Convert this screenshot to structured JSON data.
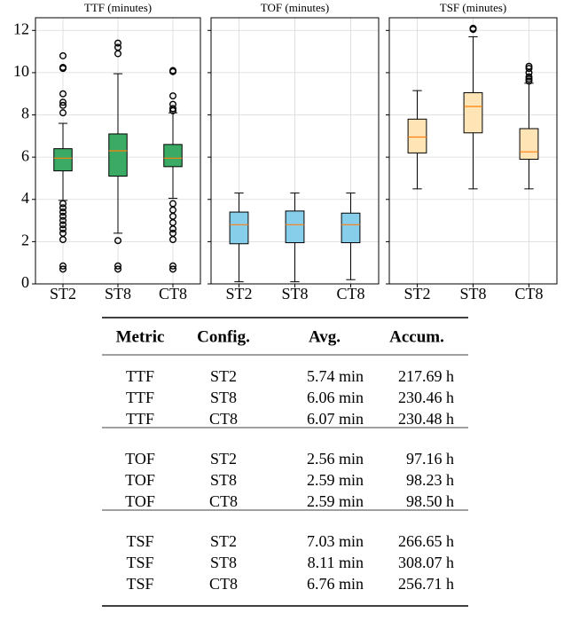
{
  "chart_data": [
    {
      "type": "box",
      "title": "TTF (minutes)",
      "categories": [
        "ST2",
        "ST8",
        "CT8"
      ],
      "color": "#3aaa64",
      "median_color": "#ff7f0e",
      "ylim": [
        0,
        12.6
      ],
      "yticks": [
        0,
        2,
        4,
        6,
        8,
        10,
        12
      ],
      "ytick_labels": true,
      "grid": true,
      "boxes": [
        {
          "whislo": 3.95,
          "q1": 5.35,
          "med": 5.95,
          "q3": 6.4,
          "whishi": 7.6,
          "fliers": [
            10.8,
            10.25,
            10.2,
            9.0,
            8.6,
            8.45,
            8.1,
            3.8,
            3.6,
            3.4,
            3.2,
            3.0,
            2.8,
            2.6,
            2.4,
            2.1,
            0.85,
            0.7
          ]
        },
        {
          "whislo": 2.4,
          "q1": 5.1,
          "med": 6.3,
          "q3": 7.1,
          "whishi": 9.95,
          "fliers": [
            11.4,
            11.2,
            10.9,
            2.05,
            0.85,
            0.7
          ]
        },
        {
          "whislo": 4.05,
          "q1": 5.55,
          "med": 5.95,
          "q3": 6.6,
          "whishi": 8.1,
          "fliers": [
            10.1,
            10.05,
            8.9,
            8.5,
            8.3,
            8.2,
            3.8,
            3.5,
            3.2,
            2.9,
            2.6,
            2.4,
            2.1,
            0.85,
            0.7
          ]
        }
      ]
    },
    {
      "type": "box",
      "title": "TOF (minutes)",
      "categories": [
        "ST2",
        "ST8",
        "CT8"
      ],
      "color": "#87ceeb",
      "median_color": "#ff7f0e",
      "ylim": [
        0,
        12.6
      ],
      "yticks": [
        0,
        2,
        4,
        6,
        8,
        10,
        12
      ],
      "ytick_labels": false,
      "grid": true,
      "boxes": [
        {
          "whislo": 0.1,
          "q1": 1.9,
          "med": 2.8,
          "q3": 3.4,
          "whishi": 4.3,
          "fliers": []
        },
        {
          "whislo": 0.1,
          "q1": 1.95,
          "med": 2.8,
          "q3": 3.45,
          "whishi": 4.3,
          "fliers": []
        },
        {
          "whislo": 0.2,
          "q1": 1.95,
          "med": 2.8,
          "q3": 3.35,
          "whishi": 4.3,
          "fliers": []
        }
      ]
    },
    {
      "type": "box",
      "title": "TSF (minutes)",
      "categories": [
        "ST2",
        "ST8",
        "CT8"
      ],
      "color": "#ffe4b5",
      "median_color": "#ff7f0e",
      "ylim": [
        0,
        12.6
      ],
      "yticks": [
        0,
        2,
        4,
        6,
        8,
        10,
        12
      ],
      "ytick_labels": false,
      "grid": true,
      "boxes": [
        {
          "whislo": 4.5,
          "q1": 6.2,
          "med": 6.95,
          "q3": 7.8,
          "whishi": 9.15,
          "fliers": []
        },
        {
          "whislo": 4.5,
          "q1": 7.15,
          "med": 8.4,
          "q3": 9.05,
          "whishi": 11.7,
          "fliers": [
            12.05,
            12.1
          ]
        },
        {
          "whislo": 4.5,
          "q1": 5.9,
          "med": 6.25,
          "q3": 7.35,
          "whishi": 9.5,
          "fliers": [
            9.6,
            9.7,
            9.8,
            10.0,
            10.2,
            10.3
          ]
        }
      ]
    }
  ],
  "table": {
    "header": [
      "Metric",
      "Config.",
      "Avg.",
      "Accum."
    ],
    "groups": [
      [
        [
          "TTF",
          "ST2",
          "5.74 min",
          "217.69 h"
        ],
        [
          "TTF",
          "ST8",
          "6.06 min",
          "230.46 h"
        ],
        [
          "TTF",
          "CT8",
          "6.07 min",
          "230.48 h"
        ]
      ],
      [
        [
          "TOF",
          "ST2",
          "2.56 min",
          "97.16 h"
        ],
        [
          "TOF",
          "ST8",
          "2.59 min",
          "98.23 h"
        ],
        [
          "TOF",
          "CT8",
          "2.59 min",
          "98.50 h"
        ]
      ],
      [
        [
          "TSF",
          "ST2",
          "7.03 min",
          "266.65 h"
        ],
        [
          "TSF",
          "ST8",
          "8.11 min",
          "308.07 h"
        ],
        [
          "TSF",
          "CT8",
          "6.76 min",
          "256.71 h"
        ]
      ]
    ]
  }
}
